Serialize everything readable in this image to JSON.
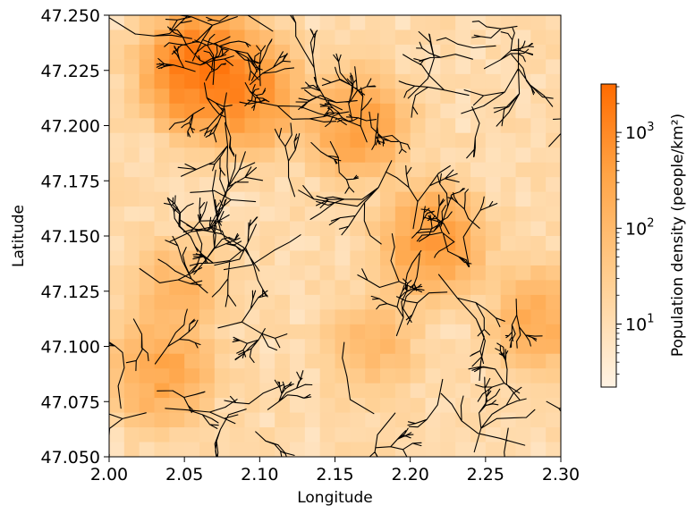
{
  "chart_data": {
    "type": "heatmap",
    "title": "",
    "xlabel": "Longitude",
    "ylabel": "Latitude",
    "xlim": [
      2.0,
      2.3
    ],
    "ylim": [
      47.05,
      47.25
    ],
    "x_ticks": [
      "2.00",
      "2.05",
      "2.10",
      "2.15",
      "2.20",
      "2.25",
      "2.30"
    ],
    "y_ticks": [
      "47.050",
      "47.075",
      "47.100",
      "47.125",
      "47.150",
      "47.175",
      "47.200",
      "47.225",
      "47.250"
    ],
    "grid": false,
    "grid_shape": {
      "rows": 30,
      "cols": 30
    },
    "density_hotspots": [
      {
        "lon": 2.06,
        "lat": 47.225,
        "density": 2000
      },
      {
        "lon": 2.09,
        "lat": 47.215,
        "density": 900
      },
      {
        "lon": 2.165,
        "lat": 47.2,
        "density": 400
      },
      {
        "lon": 2.215,
        "lat": 47.148,
        "density": 500
      },
      {
        "lon": 2.035,
        "lat": 47.088,
        "density": 300
      },
      {
        "lon": 2.285,
        "lat": 47.112,
        "density": 200
      },
      {
        "lon": 2.045,
        "lat": 47.125,
        "density": 120
      },
      {
        "lon": 2.175,
        "lat": 47.1,
        "density": 100
      }
    ],
    "colorbar": {
      "label": "Population density (people/km²)",
      "scale": "log",
      "range": [
        2.2,
        3200
      ],
      "ticks": [
        {
          "value": 10,
          "base": "10",
          "exp": "1"
        },
        {
          "value": 100,
          "base": "10",
          "exp": "2"
        },
        {
          "value": 1000,
          "base": "10",
          "exp": "3"
        }
      ],
      "color_low": "#fff3e4",
      "color_high": "#ff6b00"
    },
    "overlay": {
      "type": "road-network",
      "color": "#000000"
    }
  }
}
